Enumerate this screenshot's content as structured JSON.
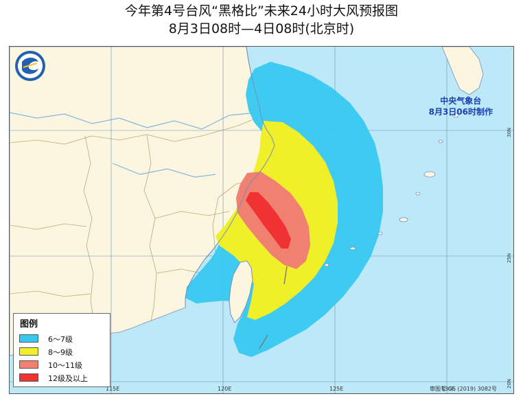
{
  "title": {
    "line1": "今年第4号台风“黑格比”未来24小时大风预报图",
    "line2": "8月3日08时—4日08时(北京时)"
  },
  "issuer": {
    "name": "中央气象台",
    "issued": "8月3日06时制作"
  },
  "map": {
    "longitude_labels": [
      "115E",
      "120E",
      "125E",
      "130E"
    ],
    "latitude_labels": [
      "30N",
      "25N",
      "20N"
    ],
    "review_number": "审图号:GS (2019) 3082号",
    "colors": {
      "sea": "#bde8f8",
      "land": "#fcf6e1",
      "grid": "#6b8fb0"
    }
  },
  "legend": {
    "title": "图例",
    "items": [
      {
        "label": "6～7级",
        "color": "#37c8f0"
      },
      {
        "label": "8～9级",
        "color": "#f0f02a"
      },
      {
        "label": "10～11级",
        "color": "#f08070"
      },
      {
        "label": "12级及以上",
        "color": "#f03232"
      }
    ]
  }
}
